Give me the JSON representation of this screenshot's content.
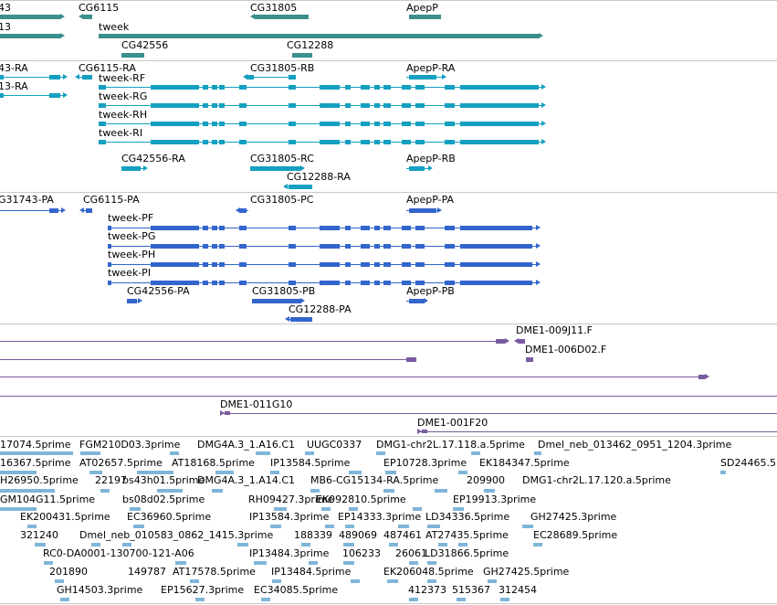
{
  "colors": {
    "gene": "#3a8f8f",
    "transcript": "#14a0c0",
    "protein": "#3366cc",
    "clone": "#7a5ba0",
    "est": "#7fb5d8",
    "separator": "#c8c8c8"
  },
  "tracks": {
    "genes": {
      "labels": [
        "43",
        "13",
        "CG6115",
        "tweek",
        "CG42556",
        "CG31805",
        "CG12288",
        "ApepP"
      ]
    },
    "transcripts": {
      "labels": [
        "43-RA",
        "13-RA",
        "CG6115-RA",
        "tweek-RF",
        "tweek-RG",
        "tweek-RH",
        "tweek-RI",
        "CG42556-RA",
        "CG31805-RB",
        "CG31805-RC",
        "CG12288-RA",
        "ApepP-RA",
        "ApepP-RB"
      ]
    },
    "proteins": {
      "labels": [
        "G31743-PA",
        "CG6115-PA",
        "tweek-PF",
        "tweek-PG",
        "tweek-PH",
        "tweek-PI",
        "CG42556-PA",
        "CG31805-PC",
        "CG31805-PB",
        "CG12288-PA",
        "ApepP-PA",
        "ApepP-PB"
      ]
    },
    "clones": {
      "labels": [
        "DME1-009J11.F",
        "DME1-006D02.F",
        "DME1-011G10",
        "DME1-001F20"
      ]
    },
    "ests": {
      "labels": [
        "17074.5prime",
        "FGM210D03.3prime",
        "DMG4A.3_1.A16.C1",
        "UUGC0337",
        "DMG1-chr2L.17.118.a.5prime",
        "Dmel_neb_013462_0951_1204.3prime",
        "16367.5prime",
        "AT02657.5prime",
        "AT18168.5prime",
        "IP13584.5prime",
        "EP10728.3prime",
        "EK184347.5prime",
        "SD24465.5",
        "H26950.5prime",
        "22197",
        "bs43h01.5prime",
        "DMG4A.3_1.A14.C1",
        "MB6-CG15134-RA.5prime",
        "209900",
        "DMG1-chr2L.17.120.a.5prime",
        "GM104G11.5prime",
        "bs08d02.5prime",
        "RH09427.3prime",
        "EK092810.5prime",
        "EP19913.3prime",
        "EK200431.5prime",
        "EC36960.5prime",
        "IP13584.3prime",
        "EP14333.3prime",
        "LD34336.5prime",
        "GH27425.3prime",
        "321240",
        "Dmel_neb_010583_0862_1415.3prime",
        "188339",
        "489069",
        "487461",
        "AT27435.5prime",
        "EC28689.5prime",
        "RC0-DA0001-130700-121-A06",
        "201890",
        "149787",
        "AT17578.5prime",
        "IP13484.3prime",
        "106233",
        "26061",
        "LD31866.5prime",
        "IP13484.5prime",
        "EK206048.5prime",
        "GH27425.5prime",
        "GH14503.3prime",
        "EP15627.3prime",
        "EC34085.5prime",
        "412373",
        "515367",
        "312454"
      ]
    }
  }
}
